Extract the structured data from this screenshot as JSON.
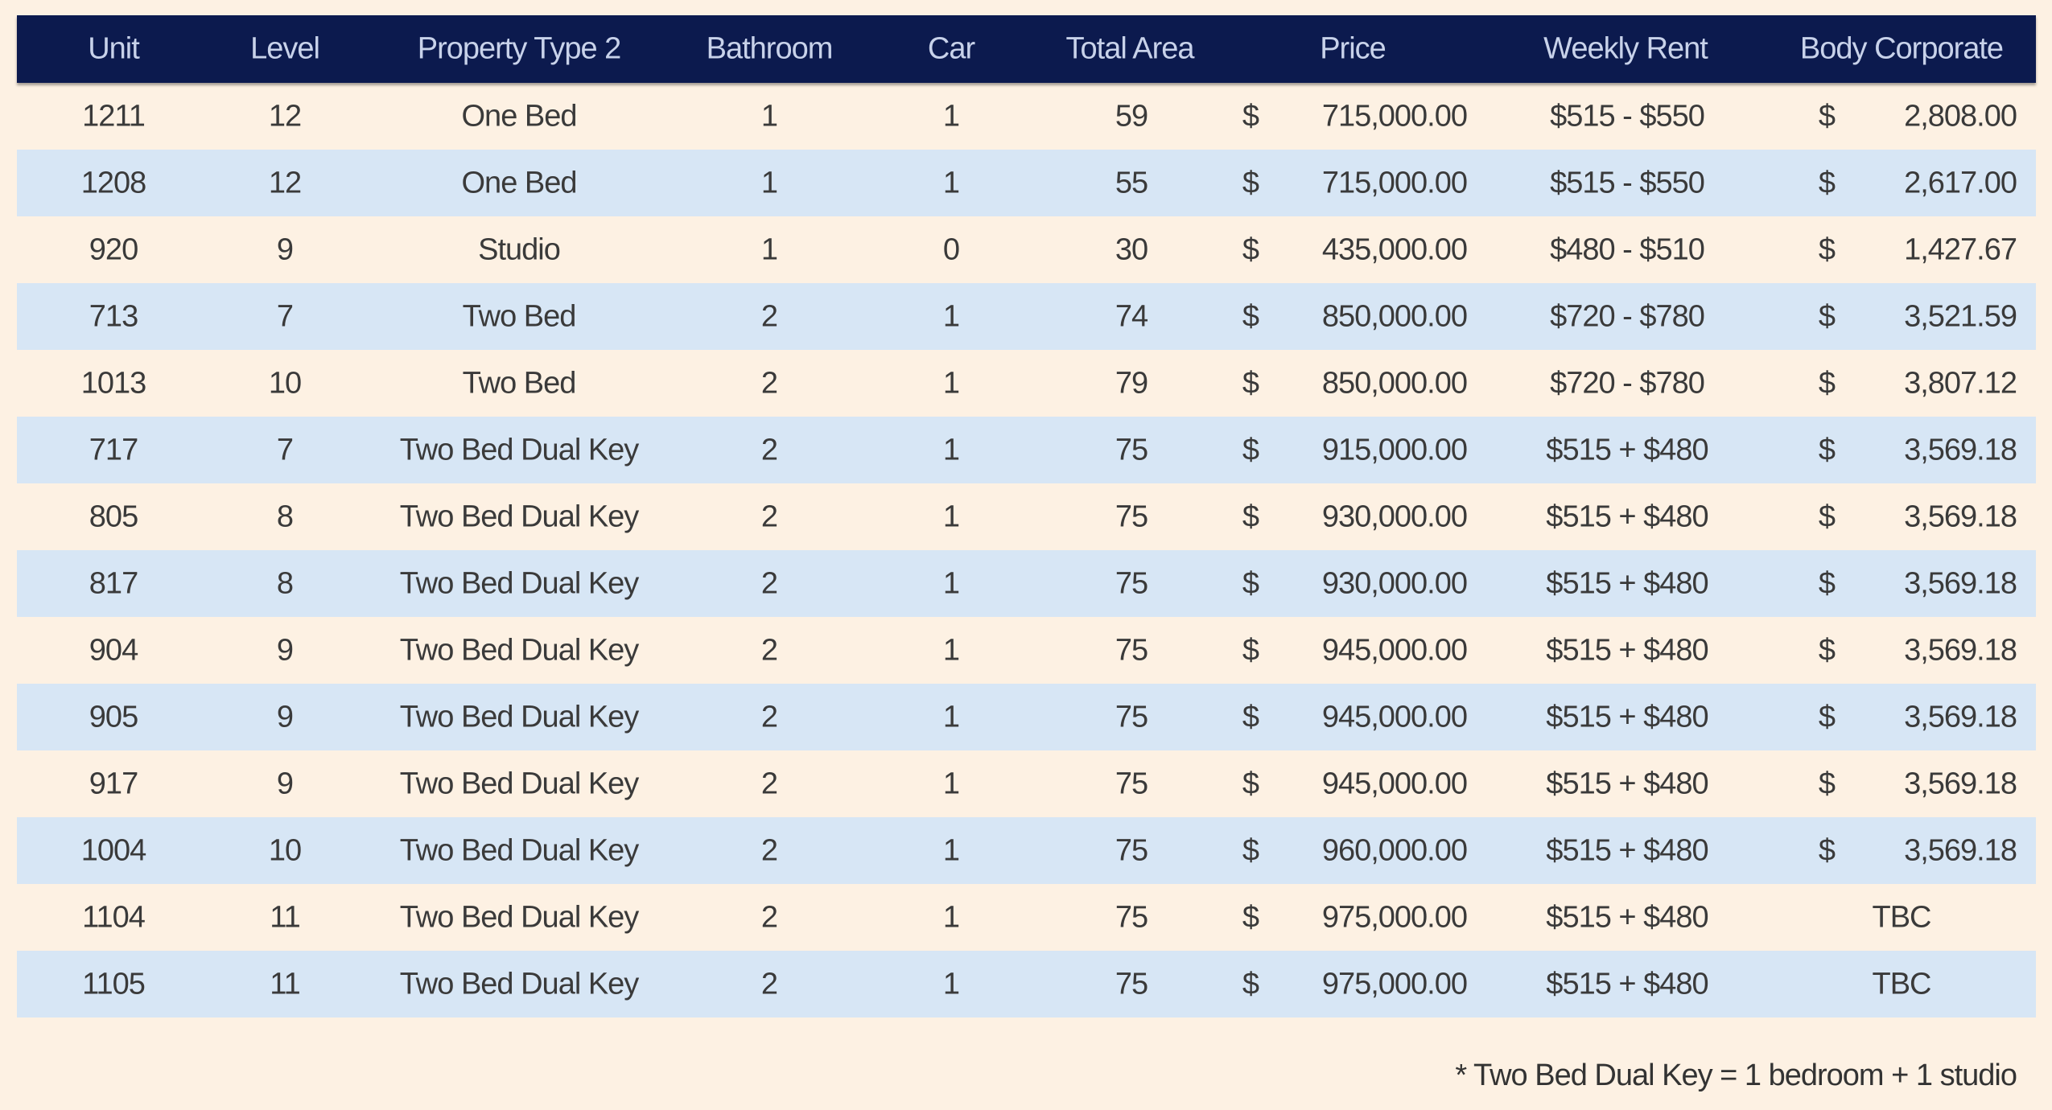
{
  "headers": [
    "Unit",
    "Level",
    "Property Type 2",
    "Bathroom",
    "Car",
    "Total Area",
    "Price",
    "Weekly Rent",
    "Body Corporate"
  ],
  "rows": [
    {
      "unit": "1211",
      "level": "12",
      "type": "One Bed",
      "bath": "1",
      "car": "1",
      "area": "59",
      "price_sym": "$",
      "price": "715,000.00",
      "rent": "$515 - $550",
      "bc_sym": "$",
      "bc": "2,808.00"
    },
    {
      "unit": "1208",
      "level": "12",
      "type": "One Bed",
      "bath": "1",
      "car": "1",
      "area": "55",
      "price_sym": "$",
      "price": "715,000.00",
      "rent": "$515 - $550",
      "bc_sym": "$",
      "bc": "2,617.00"
    },
    {
      "unit": "920",
      "level": "9",
      "type": "Studio",
      "bath": "1",
      "car": "0",
      "area": "30",
      "price_sym": "$",
      "price": "435,000.00",
      "rent": "$480 - $510",
      "bc_sym": "$",
      "bc": "1,427.67"
    },
    {
      "unit": "713",
      "level": "7",
      "type": "Two Bed",
      "bath": "2",
      "car": "1",
      "area": "74",
      "price_sym": "$",
      "price": "850,000.00",
      "rent": "$720 - $780",
      "bc_sym": "$",
      "bc": "3,521.59"
    },
    {
      "unit": "1013",
      "level": "10",
      "type": "Two Bed",
      "bath": "2",
      "car": "1",
      "area": "79",
      "price_sym": "$",
      "price": "850,000.00",
      "rent": "$720 - $780",
      "bc_sym": "$",
      "bc": "3,807.12"
    },
    {
      "unit": "717",
      "level": "7",
      "type": "Two Bed Dual Key",
      "bath": "2",
      "car": "1",
      "area": "75",
      "price_sym": "$",
      "price": "915,000.00",
      "rent": "$515 + $480",
      "bc_sym": "$",
      "bc": "3,569.18"
    },
    {
      "unit": "805",
      "level": "8",
      "type": "Two Bed Dual Key",
      "bath": "2",
      "car": "1",
      "area": "75",
      "price_sym": "$",
      "price": "930,000.00",
      "rent": "$515 + $480",
      "bc_sym": "$",
      "bc": "3,569.18"
    },
    {
      "unit": "817",
      "level": "8",
      "type": "Two Bed Dual Key",
      "bath": "2",
      "car": "1",
      "area": "75",
      "price_sym": "$",
      "price": "930,000.00",
      "rent": "$515 + $480",
      "bc_sym": "$",
      "bc": "3,569.18"
    },
    {
      "unit": "904",
      "level": "9",
      "type": "Two Bed Dual Key",
      "bath": "2",
      "car": "1",
      "area": "75",
      "price_sym": "$",
      "price": "945,000.00",
      "rent": "$515 + $480",
      "bc_sym": "$",
      "bc": "3,569.18"
    },
    {
      "unit": "905",
      "level": "9",
      "type": "Two Bed Dual Key",
      "bath": "2",
      "car": "1",
      "area": "75",
      "price_sym": "$",
      "price": "945,000.00",
      "rent": "$515 + $480",
      "bc_sym": "$",
      "bc": "3,569.18"
    },
    {
      "unit": "917",
      "level": "9",
      "type": "Two Bed Dual Key",
      "bath": "2",
      "car": "1",
      "area": "75",
      "price_sym": "$",
      "price": "945,000.00",
      "rent": "$515 + $480",
      "bc_sym": "$",
      "bc": "3,569.18"
    },
    {
      "unit": "1004",
      "level": "10",
      "type": "Two Bed Dual Key",
      "bath": "2",
      "car": "1",
      "area": "75",
      "price_sym": "$",
      "price": "960,000.00",
      "rent": "$515 + $480",
      "bc_sym": "$",
      "bc": "3,569.18"
    },
    {
      "unit": "1104",
      "level": "11",
      "type": "Two Bed Dual Key",
      "bath": "2",
      "car": "1",
      "area": "75",
      "price_sym": "$",
      "price": "975,000.00",
      "rent": "$515 + $480",
      "bc_tbc": "TBC"
    },
    {
      "unit": "1105",
      "level": "11",
      "type": "Two Bed Dual Key",
      "bath": "2",
      "car": "1",
      "area": "75",
      "price_sym": "$",
      "price": "975,000.00",
      "rent": "$515 + $480",
      "bc_tbc": "TBC"
    }
  ],
  "footnote": "* Two Bed Dual Key = 1 bedroom + 1 studio",
  "colors": {
    "header_bg": "#0c1a4e",
    "stripe": "#d7e6f5",
    "background": "#fdf1e3"
  }
}
